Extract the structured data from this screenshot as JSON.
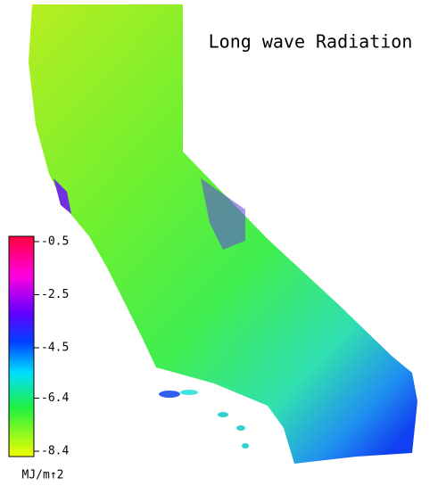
{
  "title": "Long wave Radiation",
  "colorbar": {
    "ticks": [
      -0.5,
      -2.5,
      -4.5,
      -6.4,
      -8.4
    ],
    "lim": [
      -8.6,
      -0.3
    ],
    "units": "MJ/m↑2"
  }
}
